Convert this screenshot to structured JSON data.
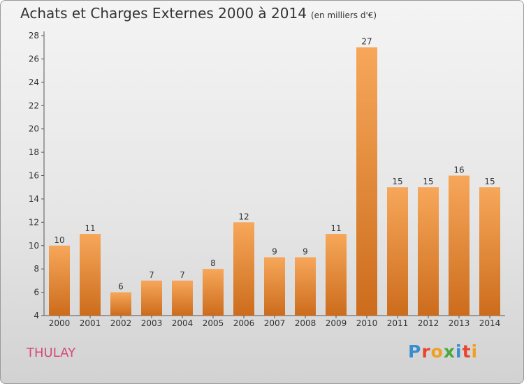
{
  "header": {
    "title": "Achats et Charges Externes 2000 à 2014",
    "subtitle": "(en milliers d'€)"
  },
  "commune": "THULAY",
  "logo": {
    "text": "Proxiti",
    "colors": [
      "#3a8ed0",
      "#e8452f",
      "#f0a020",
      "#4aa83e",
      "#3a8ed0",
      "#e8452f",
      "#f0a020"
    ]
  },
  "colors": {
    "bar_top": "#f7a75a",
    "bar_bottom": "#cc6c1c",
    "text": "#333333",
    "commune": "#d64a7a"
  },
  "chart_data": {
    "type": "bar",
    "title": "Achats et Charges Externes 2000 à 2014",
    "subtitle": "(en milliers d'€)",
    "categories": [
      "2000",
      "2001",
      "2002",
      "2003",
      "2004",
      "2005",
      "2006",
      "2007",
      "2008",
      "2009",
      "2010",
      "2011",
      "2012",
      "2013",
      "2014"
    ],
    "values": [
      10,
      11,
      6,
      7,
      7,
      8,
      12,
      9,
      9,
      11,
      27,
      15,
      15,
      16,
      15
    ],
    "ylim": [
      4,
      28
    ],
    "yticks": [
      4,
      6,
      8,
      10,
      12,
      14,
      16,
      18,
      20,
      22,
      24,
      26,
      28
    ],
    "grid": false,
    "legend": "none"
  }
}
